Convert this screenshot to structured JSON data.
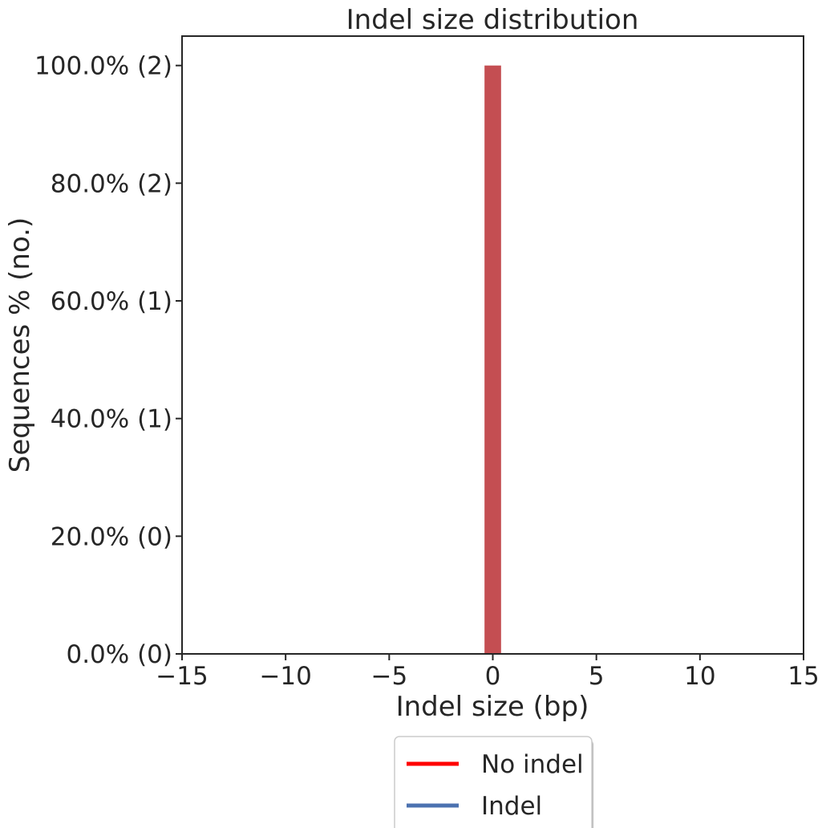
{
  "chart_data": {
    "type": "bar",
    "title": "Indel size distribution",
    "xlabel": "Indel size (bp)",
    "ylabel": "Sequences % (no.)",
    "xlim": [
      -15,
      15
    ],
    "ylim": [
      0,
      105
    ],
    "x_ticks": [
      -15,
      -10,
      -5,
      0,
      5,
      10,
      15
    ],
    "x_tick_labels": [
      "−15",
      "−10",
      "−5",
      "0",
      "5",
      "10",
      "15"
    ],
    "y_ticks": [
      0,
      20,
      40,
      60,
      80,
      100
    ],
    "y_tick_labels": [
      "0.0% (0)",
      "20.0% (0)",
      "40.0% (1)",
      "60.0% (1)",
      "80.0% (2)",
      "100.0% (2)"
    ],
    "bars": [
      {
        "x": 0,
        "width": 0.8,
        "value": 100,
        "series": "No indel"
      }
    ],
    "legend": {
      "placement": "bottom-center, outside",
      "entries": [
        {
          "label": "No indel",
          "color": "#ff0000"
        },
        {
          "label": "Indel",
          "color": "#4c72b0"
        }
      ]
    },
    "bar_color": "#c44e52",
    "grid": false
  }
}
